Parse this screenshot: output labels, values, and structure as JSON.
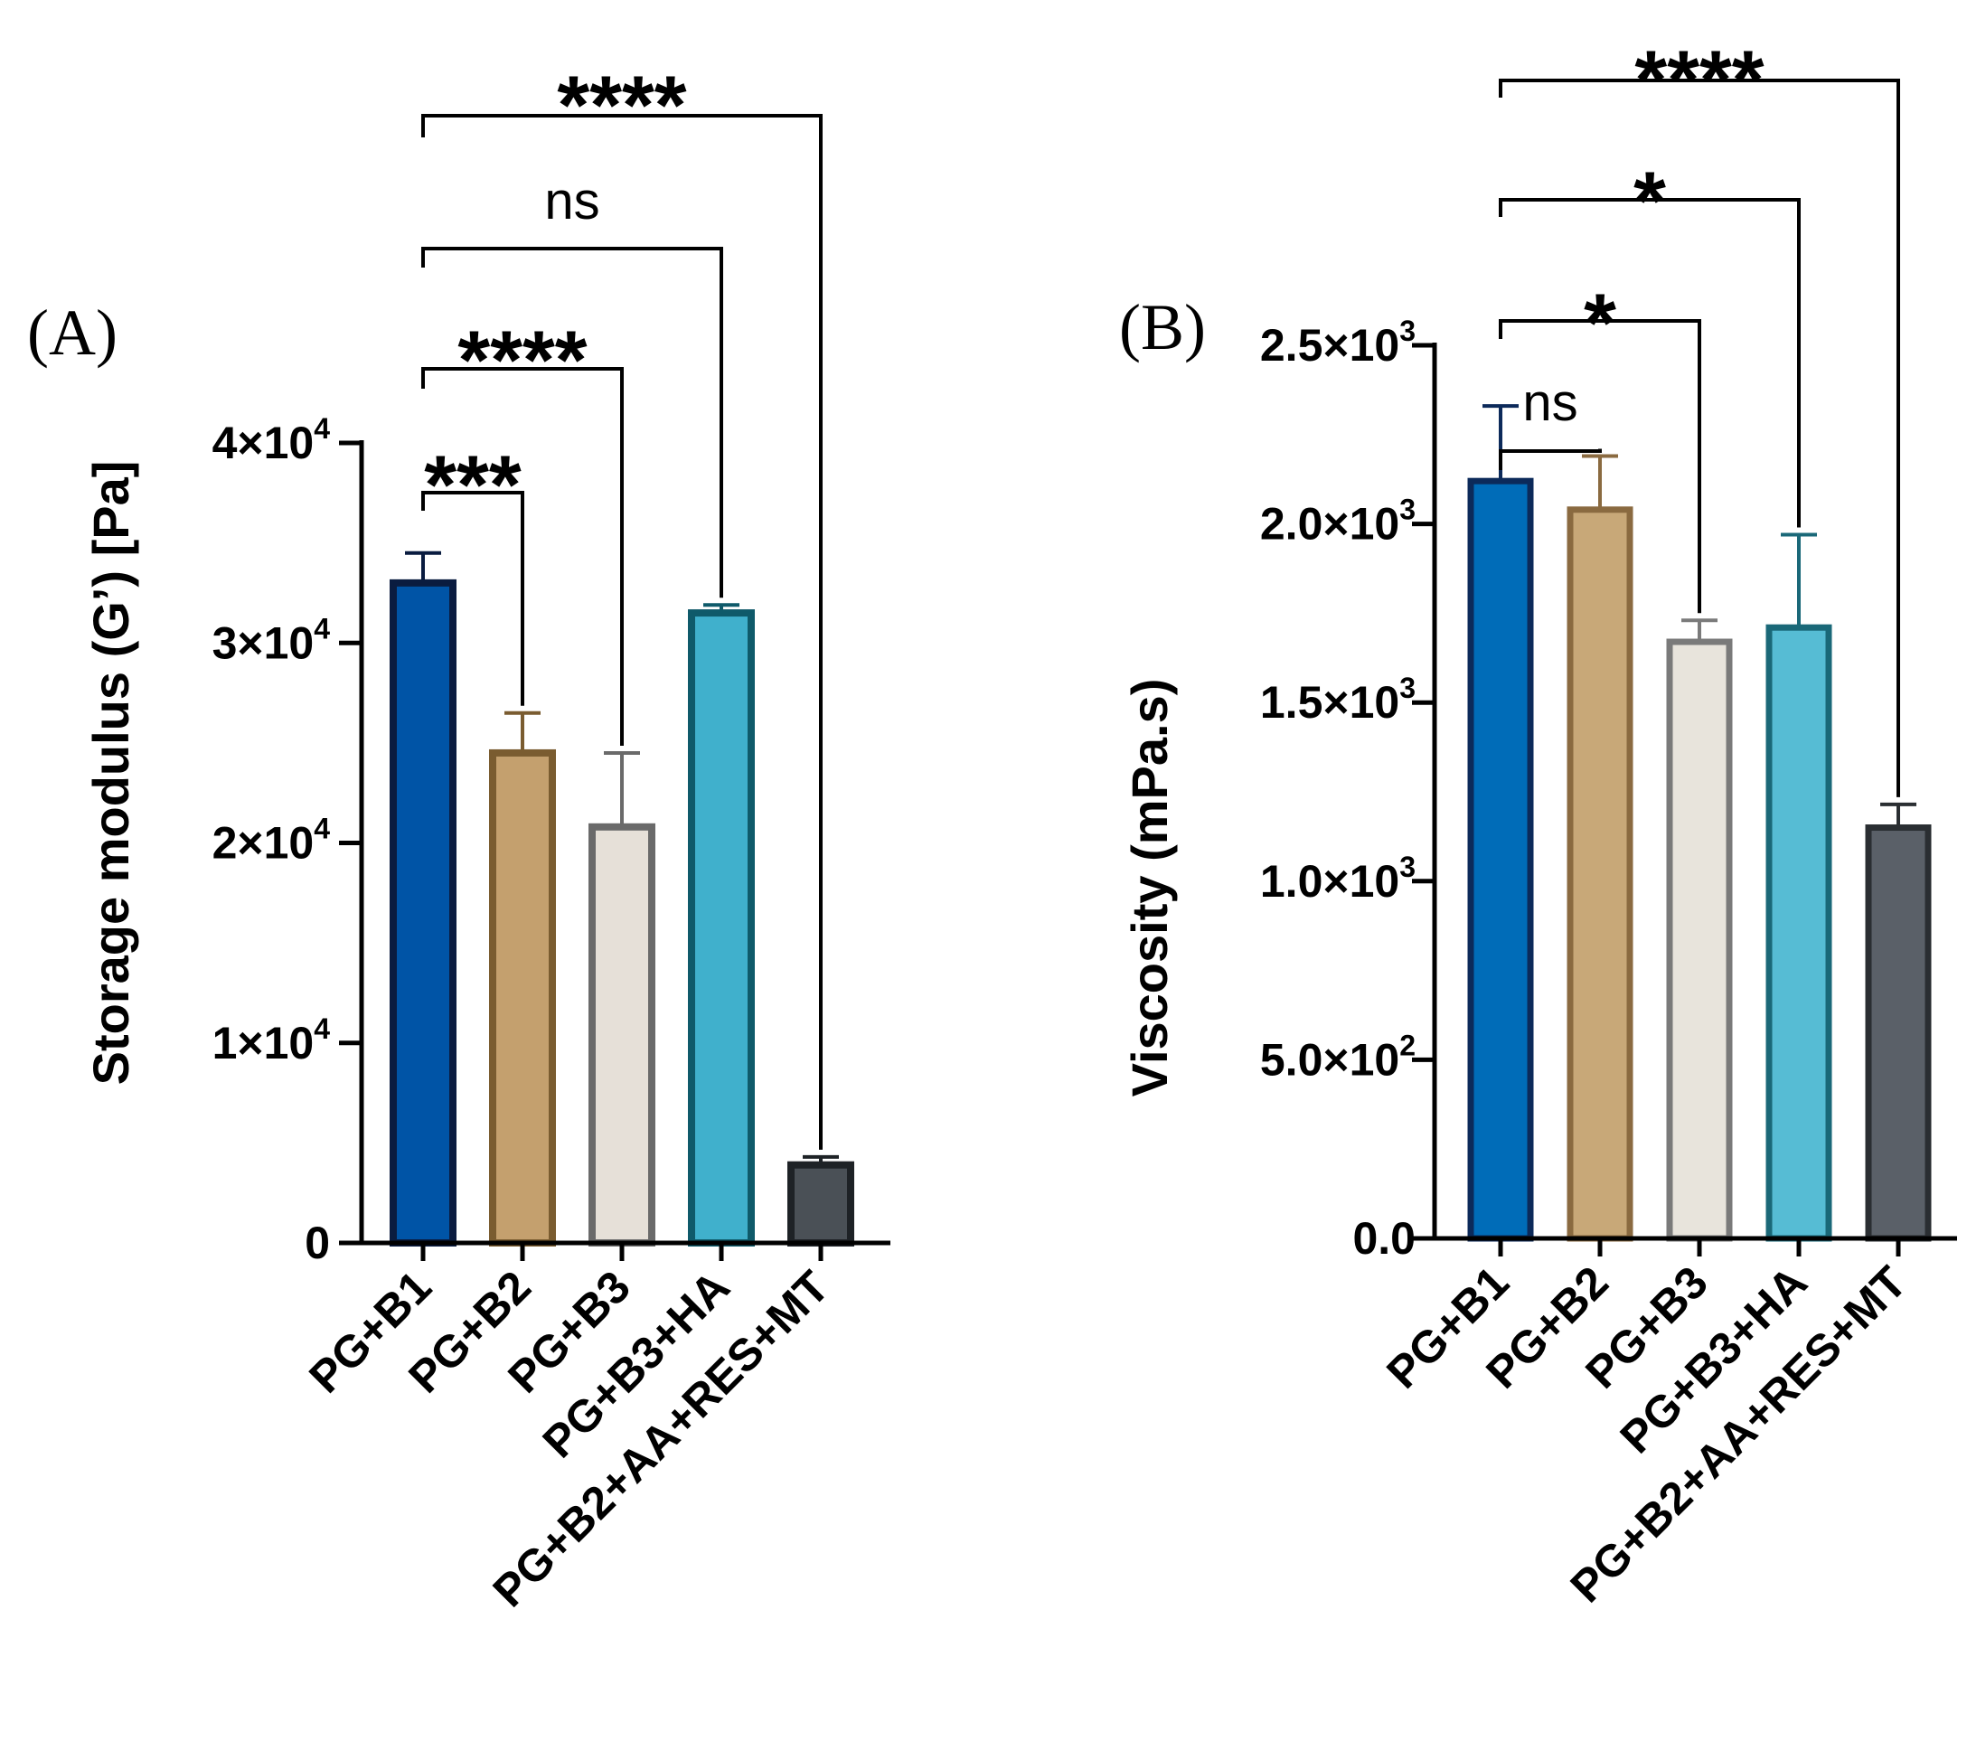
{
  "chart_data": [
    {
      "type": "bar",
      "panel": "(A)",
      "categories": [
        "PG+B1",
        "PG+B2",
        "PG+B3",
        "PG+B3+HA",
        "PG+B2+AA+RES+MT"
      ],
      "values": [
        33000,
        24500,
        20800,
        31500,
        3900
      ],
      "errors": [
        1500,
        2000,
        3700,
        400,
        400
      ],
      "ylabel": "Storage modulus (G’) [Pa]",
      "ylim": [
        0,
        40000
      ],
      "yticks": [
        {
          "value": 0,
          "mant": "0",
          "exp": ""
        },
        {
          "value": 10000,
          "mant": "1×10",
          "exp": "4"
        },
        {
          "value": 20000,
          "mant": "2×10",
          "exp": "4"
        },
        {
          "value": 30000,
          "mant": "3×10",
          "exp": "4"
        },
        {
          "value": 40000,
          "mant": "4×10",
          "exp": "4"
        }
      ],
      "bar_colors": [
        "#0054a6",
        "#c4a06e",
        "#e6e0d8",
        "#40b0cc",
        "#4a5056"
      ],
      "edge_colors": [
        "#0a1c40",
        "#7a5c30",
        "#6a6a6a",
        "#0f5a6a",
        "#1e2226"
      ],
      "comparisons": [
        {
          "from": "PG+B1",
          "to": "PG+B2",
          "label": "***"
        },
        {
          "from": "PG+B1",
          "to": "PG+B3",
          "label": "****"
        },
        {
          "from": "PG+B1",
          "to": "PG+B3+HA",
          "label": "ns"
        },
        {
          "from": "PG+B1",
          "to": "PG+B2+AA+RES+MT",
          "label": "****"
        }
      ]
    },
    {
      "type": "bar",
      "panel": "(B)",
      "categories": [
        "PG+B1",
        "PG+B2",
        "PG+B3",
        "PG+B3+HA",
        "PG+B2+AA+RES+MT"
      ],
      "values": [
        2120,
        2040,
        1670,
        1710,
        1150
      ],
      "errors": [
        210,
        150,
        60,
        260,
        65
      ],
      "ylabel": "Viscosity (mPa.s)",
      "ylim": [
        0,
        2500
      ],
      "yticks": [
        {
          "value": 0,
          "mant": "0.0",
          "exp": ""
        },
        {
          "value": 500,
          "mant": "5.0×10",
          "exp": "2"
        },
        {
          "value": 1000,
          "mant": "1.0×10",
          "exp": "3"
        },
        {
          "value": 1500,
          "mant": "1.5×10",
          "exp": "3"
        },
        {
          "value": 2000,
          "mant": "2.0×10",
          "exp": "3"
        },
        {
          "value": 2500,
          "mant": "2.5×10",
          "exp": "3"
        }
      ],
      "bar_colors": [
        "#006cb8",
        "#c8a878",
        "#e8e4dc",
        "#56bcd4",
        "#5a6068"
      ],
      "edge_colors": [
        "#0c2a5a",
        "#8a6a40",
        "#7a7a7a",
        "#1a6878",
        "#2a2e32"
      ],
      "comparisons": [
        {
          "from": "PG+B1",
          "to": "PG+B2",
          "label": "ns"
        },
        {
          "from": "PG+B1",
          "to": "PG+B3",
          "label": "*"
        },
        {
          "from": "PG+B1",
          "to": "PG+B3+HA",
          "label": "*"
        },
        {
          "from": "PG+B1",
          "to": "PG+B2+AA+RES+MT",
          "label": "****"
        }
      ]
    }
  ]
}
